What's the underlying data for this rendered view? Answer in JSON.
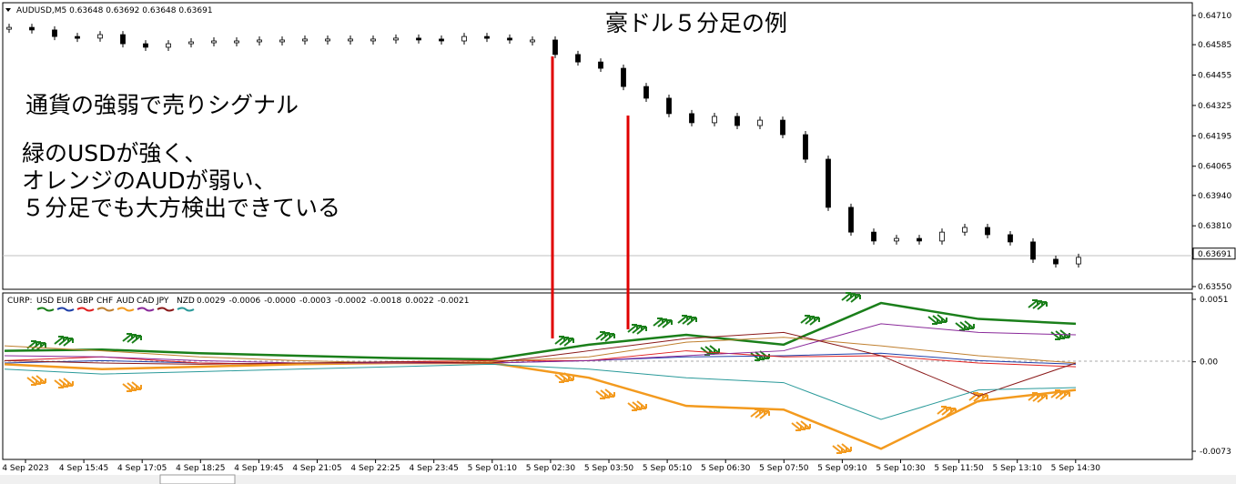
{
  "price_chart": {
    "header": "AUDUSD,M5  0.63648 0.63692 0.63648 0.63691",
    "title": "豪ドル５分足の例",
    "annotations": [
      "通貨の強弱で売りシグナル",
      "緑のUSDが強く、",
      "オレンジのAUDが弱い、",
      "５分足でも大方検出できている"
    ],
    "yticks": [
      {
        "value": 0.6471,
        "label": "0.64710"
      },
      {
        "value": 0.64585,
        "label": "0.64585"
      },
      {
        "value": 0.64455,
        "label": "0.64455"
      },
      {
        "value": 0.64325,
        "label": "0.64325"
      },
      {
        "value": 0.64195,
        "label": "0.64195"
      },
      {
        "value": 0.64065,
        "label": "0.64065"
      },
      {
        "value": 0.6394,
        "label": "0.63940"
      },
      {
        "value": 0.6381,
        "label": "0.63810"
      },
      {
        "value": 0.6355,
        "label": "0.63550"
      }
    ],
    "current_price": {
      "value": 0.63691,
      "label": "0.63691"
    },
    "close": [
      0.64659,
      0.64648,
      0.6462,
      0.64613,
      0.64628,
      0.64589,
      0.64574,
      0.64589,
      0.64597,
      0.64601,
      0.64601,
      0.64605,
      0.64605,
      0.64609,
      0.64609,
      0.64609,
      0.64609,
      0.64613,
      0.64609,
      0.64601,
      0.6462,
      0.64613,
      0.64605,
      0.64605,
      0.64543,
      0.64511,
      0.64484,
      0.64406,
      0.64356,
      0.6429,
      0.64251,
      0.64278,
      0.64239,
      0.64262,
      0.642,
      0.64095,
      0.63889,
      0.63783,
      0.63745,
      0.63756,
      0.63745,
      0.63783,
      0.63803,
      0.63772,
      0.63741,
      0.63667,
      0.63647,
      0.63675
    ]
  },
  "indicator": {
    "label": "CURP:",
    "last_values": [
      "0.0029",
      "-0.0006",
      "-0.0000",
      "-0.0003",
      "-0.0002",
      "-0.0018",
      "0.0022",
      "-0.0021"
    ],
    "yticks": [
      {
        "value": 0.0051,
        "label": "0.0051"
      },
      {
        "value": 0,
        "label": "0.00"
      },
      {
        "value": -0.0073,
        "label": "-0.0073"
      }
    ],
    "series": [
      {
        "name": "USD",
        "color": "#1a7f1a",
        "width": 2.5,
        "values": [
          0.0009,
          0.001,
          0.0007,
          0.0005,
          0.0003,
          0.0002,
          0.0014,
          0.0022,
          0.0014,
          0.0048,
          0.0035,
          0.0031
        ]
      },
      {
        "name": "EUR",
        "color": "#1f3fa8",
        "width": 1,
        "values": [
          -0.0001,
          0.0001,
          -0.0001,
          -0.0002,
          -0.0001,
          -0.0001,
          0.0001,
          0.0004,
          0.0005,
          0.0007,
          0.0001,
          -0.0002
        ]
      },
      {
        "name": "GBP",
        "color": "#e02020",
        "width": 1,
        "values": [
          0.0001,
          0.0004,
          -0.0001,
          -0.0002,
          0,
          0.0001,
          0.0001,
          0.0009,
          0.0004,
          0.0005,
          -0.0001,
          -0.0004
        ]
      },
      {
        "name": "CHF",
        "color": "#c08030",
        "width": 1,
        "values": [
          0.0013,
          0.0009,
          0.0004,
          0.0001,
          -0.0001,
          0,
          0.0004,
          0.0016,
          0.002,
          0.0013,
          0.0005,
          -0.0001
        ]
      },
      {
        "name": "AUD",
        "color": "#f39a1e",
        "width": 2.5,
        "values": [
          -0.0002,
          -0.0006,
          -0.0004,
          -0.0002,
          -0.0001,
          -0.0001,
          -0.0013,
          -0.0036,
          -0.0039,
          -0.0071,
          -0.0032,
          -0.0023
        ]
      },
      {
        "name": "CAD",
        "color": "#8a2a9a",
        "width": 1,
        "values": [
          0.0005,
          0.0004,
          0.0001,
          -0.0001,
          -0.0001,
          -0.0001,
          0.0001,
          0.0005,
          0.0009,
          0.0031,
          0.0024,
          0.0022
        ]
      },
      {
        "name": "JPY",
        "color": "#8b1a1a",
        "width": 1,
        "values": [
          0.0001,
          -0.0001,
          -0.0002,
          -0.0001,
          0,
          -0.0001,
          0.0009,
          0.0019,
          0.0024,
          0.0005,
          -0.0028,
          -0.0001
        ]
      },
      {
        "name": "NZD",
        "color": "#2a9a9a",
        "width": 1,
        "values": [
          -0.0006,
          -0.001,
          -0.0008,
          -0.0006,
          -0.0004,
          -0.0002,
          -0.0006,
          -0.0013,
          -0.0017,
          -0.0047,
          -0.0023,
          -0.0021
        ]
      }
    ]
  },
  "time_axis": [
    "4 Sep 2023",
    "4 Sep 15:45",
    "4 Sep 17:05",
    "4 Sep 18:25",
    "4 Sep 19:45",
    "4 Sep 21:05",
    "4 Sep 22:25",
    "4 Sep 23:45",
    "5 Sep 01:10",
    "5 Sep 02:30",
    "5 Sep 03:50",
    "5 Sep 05:10",
    "5 Sep 06:30",
    "5 Sep 07:50",
    "5 Sep 09:10",
    "5 Sep 10:30",
    "5 Sep 11:50",
    "5 Sep 13:10",
    "5 Sep 14:30"
  ]
}
